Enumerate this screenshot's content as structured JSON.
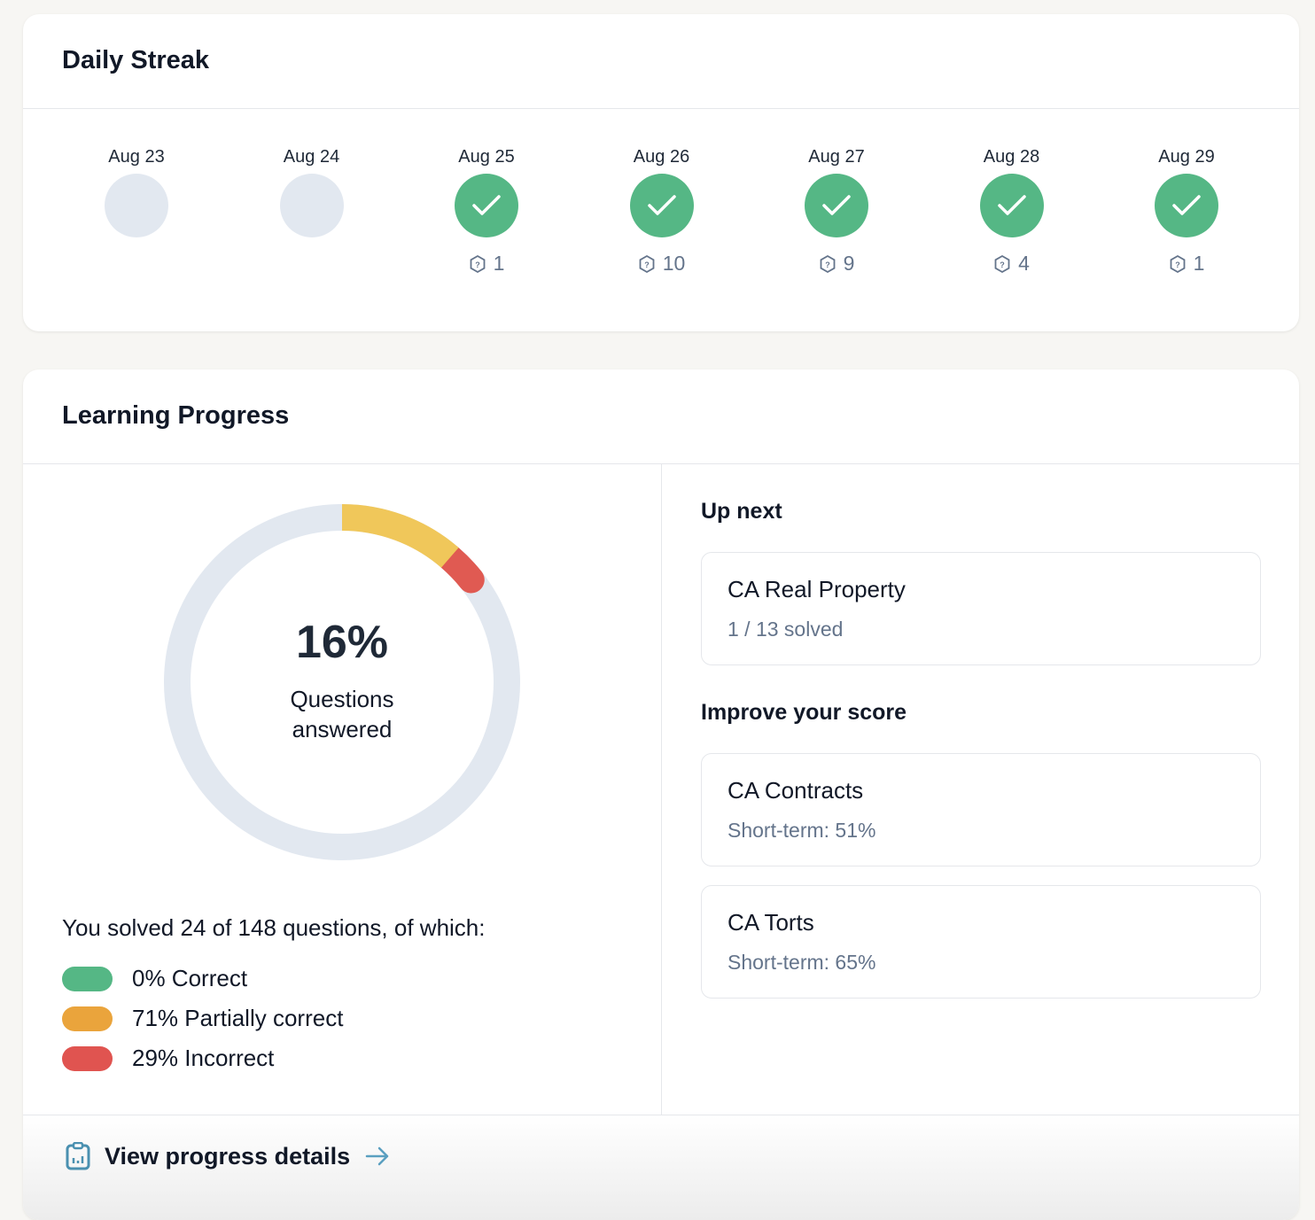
{
  "streak": {
    "title": "Daily Streak",
    "days": [
      {
        "date": "Aug 23",
        "done": false,
        "count": ""
      },
      {
        "date": "Aug 24",
        "done": false,
        "count": ""
      },
      {
        "date": "Aug 25",
        "done": true,
        "count": "1"
      },
      {
        "date": "Aug 26",
        "done": true,
        "count": "10"
      },
      {
        "date": "Aug 27",
        "done": true,
        "count": "9"
      },
      {
        "date": "Aug 28",
        "done": true,
        "count": "4"
      },
      {
        "date": "Aug 29",
        "done": true,
        "count": "1"
      }
    ]
  },
  "progress": {
    "title": "Learning Progress",
    "percent_label": "16%",
    "center_label": "Questions answered",
    "answered_fraction": 0.16,
    "summary": "You solved 24 of 148 questions, of which:",
    "legend": [
      {
        "label": "0% Correct",
        "color": "#55b785",
        "share": 0
      },
      {
        "label": "71% Partially correct",
        "color": "#eaa43c",
        "share": 0.71
      },
      {
        "label": "29% Incorrect",
        "color": "#e05450",
        "share": 0.29
      }
    ],
    "ring_colors": {
      "track": "#e2e8f0",
      "partial": "#f0c75a",
      "incorrect": "#e05a52"
    },
    "up_next": {
      "heading": "Up next",
      "items": [
        {
          "title": "CA Real Property",
          "sub": "1 / 13 solved"
        }
      ]
    },
    "improve": {
      "heading": "Improve your score",
      "items": [
        {
          "title": "CA Contracts",
          "sub": "Short-term: 51%"
        },
        {
          "title": "CA Torts",
          "sub": "Short-term: 65%"
        }
      ]
    },
    "footer_link": "View progress details"
  }
}
